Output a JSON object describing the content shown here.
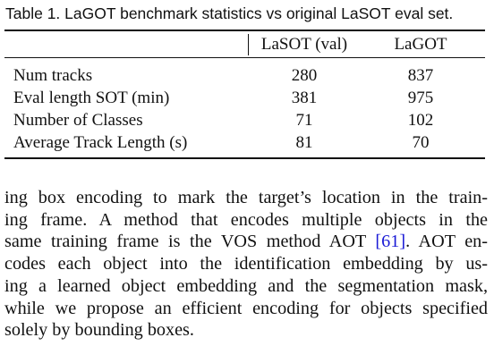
{
  "caption": "Table 1. LaGOT benchmark statistics vs original LaSOT eval set.",
  "table": {
    "headers": [
      "",
      "LaSOT (val)",
      "LaGOT"
    ],
    "rows": [
      {
        "label": "Num tracks",
        "lasot": "280",
        "lagot": "837"
      },
      {
        "label": "Eval length SOT (min)",
        "lasot": "381",
        "lagot": "975"
      },
      {
        "label": "Number of Classes",
        "lasot": "71",
        "lagot": "102"
      },
      {
        "label": "Average Track Length (s)",
        "lasot": "81",
        "lagot": "70"
      }
    ]
  },
  "paragraph": {
    "lines": [
      "ing box encoding to mark the target’s location in the train-",
      "ing frame.  A method that encodes multiple objects in the",
      "same training frame is the VOS method AOT ",
      "codes each object into the identification embedding by us-",
      "ing a learned object embedding and the segmentation mask,",
      "while we propose an efficient encoding for objects specified",
      "solely by bounding boxes."
    ],
    "citation": "[61]",
    "line3_tail": ". AOT en-"
  }
}
